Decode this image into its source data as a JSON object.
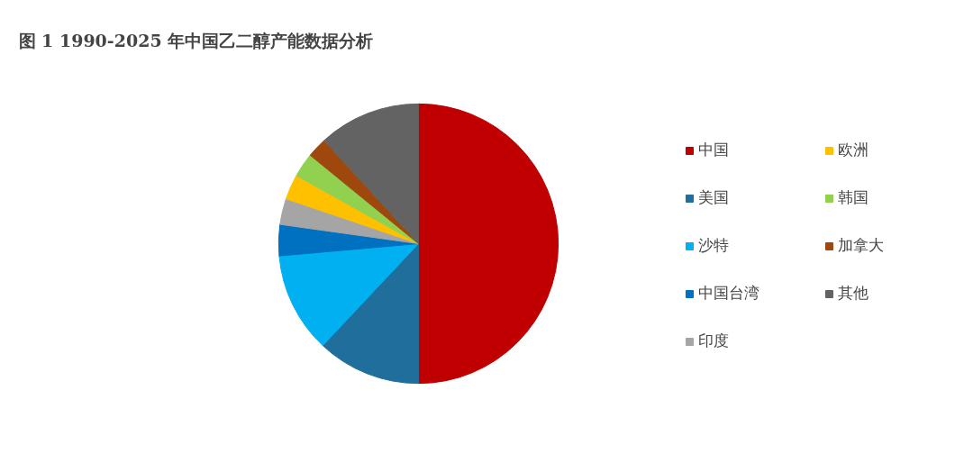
{
  "chart_data": {
    "type": "pie",
    "title": "图 1 1990-2025 年中国乙二醇产能数据分析",
    "categories": [
      "中国",
      "美国",
      "沙特",
      "中国台湾",
      "印度",
      "欧洲",
      "韩国",
      "加拿大",
      "其他"
    ],
    "values": [
      50,
      12,
      11.6,
      3.6,
      3,
      2.9,
      2.8,
      2.3,
      11.8
    ],
    "colors": [
      "#c00000",
      "#1f6e9c",
      "#00b0f0",
      "#0070c0",
      "#a5a5a5",
      "#ffc000",
      "#92d050",
      "#9e480e",
      "#636363"
    ],
    "legend": "right"
  }
}
